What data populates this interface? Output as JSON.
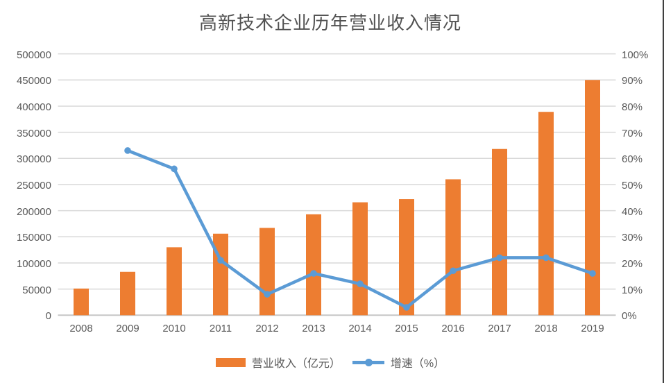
{
  "page": {
    "background": "#ffffff",
    "right_border_color": "#3f3f3f"
  },
  "chart_data": {
    "type": "combo-bar-line",
    "title": "高新技术企业历年营业收入情况",
    "categories": [
      "2008",
      "2009",
      "2010",
      "2011",
      "2012",
      "2013",
      "2014",
      "2015",
      "2016",
      "2017",
      "2018",
      "2019"
    ],
    "series": [
      {
        "name": "营业收入（亿元）",
        "type": "bar",
        "axis": "left",
        "color": "#ED7D31",
        "values": [
          51000,
          83000,
          130000,
          156000,
          167000,
          193000,
          216000,
          222000,
          260000,
          318000,
          389000,
          450000
        ]
      },
      {
        "name": "增速（%）",
        "type": "line",
        "axis": "right",
        "color": "#5B9BD5",
        "values": [
          null,
          63,
          56,
          21,
          8,
          16,
          12,
          3,
          17,
          22,
          22,
          16
        ]
      }
    ],
    "left_axis": {
      "min": 0,
      "max": 500000,
      "step": 50000,
      "tick_labels_top_to_bottom": [
        "500000",
        "450000",
        "400000",
        "350000",
        "300000",
        "250000",
        "200000",
        "150000",
        "100000",
        "50000",
        "0"
      ]
    },
    "right_axis": {
      "min": 0,
      "max": 100,
      "step": 10,
      "tick_labels_top_to_bottom": [
        "100%",
        "90%",
        "80%",
        "70%",
        "60%",
        "50%",
        "40%",
        "30%",
        "20%",
        "10%",
        "0%"
      ]
    },
    "grid": true,
    "gridline_color": "#D9D9D9",
    "axis_line_color": "#C6C6C6",
    "legend_position": "bottom"
  },
  "legend": {
    "bar_label": "营业收入（亿元）",
    "line_label": "增速（%）"
  }
}
